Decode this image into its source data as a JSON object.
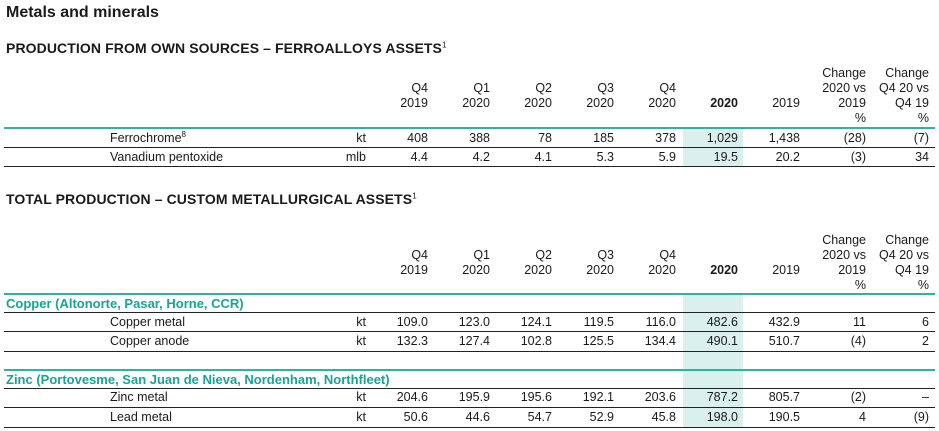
{
  "section_title": "Metals and minerals",
  "colors": {
    "accent": "#1aa393",
    "highlight": "#daf0ec",
    "rule_teal": "#2fb3a0"
  },
  "table1": {
    "title": "PRODUCTION FROM OWN SOURCES – FERROALLOYS ASSETS",
    "title_note": "1",
    "headers": {
      "q4_2019": [
        "Q4",
        "2019"
      ],
      "q1_2020": [
        "Q1",
        "2020"
      ],
      "q2_2020": [
        "Q2",
        "2020"
      ],
      "q3_2020": [
        "Q3",
        "2020"
      ],
      "q4_2020": [
        "Q4",
        "2020"
      ],
      "y2020": "2020",
      "y2019": "2019",
      "chg_year": [
        "Change",
        "2020 vs",
        "2019",
        "%"
      ],
      "chg_q4": [
        "Change",
        "Q4 20 vs",
        "Q4 19",
        "%"
      ]
    },
    "rows": [
      {
        "label": "Ferrochrome",
        "note": "8",
        "unit": "kt",
        "q4_2019": "408",
        "q1_2020": "388",
        "q2_2020": "78",
        "q3_2020": "185",
        "q4_2020": "378",
        "y2020": "1,029",
        "y2019": "1,438",
        "chg_year": "(28)",
        "chg_q4": "(7)"
      },
      {
        "label": "Vanadium pentoxide",
        "note": "",
        "unit": "mlb",
        "q4_2019": "4.4",
        "q1_2020": "4.2",
        "q2_2020": "4.1",
        "q3_2020": "5.3",
        "q4_2020": "5.9",
        "y2020": "19.5",
        "y2019": "20.2",
        "chg_year": "(3)",
        "chg_q4": "34"
      }
    ]
  },
  "table2": {
    "title": "TOTAL PRODUCTION – CUSTOM METALLURGICAL ASSETS",
    "title_note": "1",
    "headers": {
      "q4_2019": [
        "Q4",
        "2019"
      ],
      "q1_2020": [
        "Q1",
        "2020"
      ],
      "q2_2020": [
        "Q2",
        "2020"
      ],
      "q3_2020": [
        "Q3",
        "2020"
      ],
      "q4_2020": [
        "Q4",
        "2020"
      ],
      "y2020": "2020",
      "y2019": "2019",
      "chg_year": [
        "Change",
        "2020 vs",
        "2019",
        "%"
      ],
      "chg_q4": [
        "Change",
        "Q4 20 vs",
        "Q4 19",
        "%"
      ]
    },
    "groups": [
      {
        "name": "Copper (Altonorte, Pasar, Horne, CCR)",
        "rows": [
          {
            "label": "Copper metal",
            "unit": "kt",
            "q4_2019": "109.0",
            "q1_2020": "123.0",
            "q2_2020": "124.1",
            "q3_2020": "119.5",
            "q4_2020": "116.0",
            "y2020": "482.6",
            "y2019": "432.9",
            "chg_year": "11",
            "chg_q4": "6"
          },
          {
            "label": "Copper anode",
            "unit": "kt",
            "q4_2019": "132.3",
            "q1_2020": "127.4",
            "q2_2020": "102.8",
            "q3_2020": "125.5",
            "q4_2020": "134.4",
            "y2020": "490.1",
            "y2019": "510.7",
            "chg_year": "(4)",
            "chg_q4": "2"
          }
        ]
      },
      {
        "name": "Zinc (Portovesme, San Juan de Nieva, Nordenham, Northfleet)",
        "rows": [
          {
            "label": "Zinc metal",
            "unit": "kt",
            "q4_2019": "204.6",
            "q1_2020": "195.9",
            "q2_2020": "195.6",
            "q3_2020": "192.1",
            "q4_2020": "203.6",
            "y2020": "787.2",
            "y2019": "805.7",
            "chg_year": "(2)",
            "chg_q4": "–"
          },
          {
            "label": "Lead metal",
            "unit": "kt",
            "q4_2019": "50.6",
            "q1_2020": "44.6",
            "q2_2020": "54.7",
            "q3_2020": "52.9",
            "q4_2020": "45.8",
            "y2020": "198.0",
            "y2019": "190.5",
            "chg_year": "4",
            "chg_q4": "(9)"
          }
        ]
      }
    ]
  }
}
